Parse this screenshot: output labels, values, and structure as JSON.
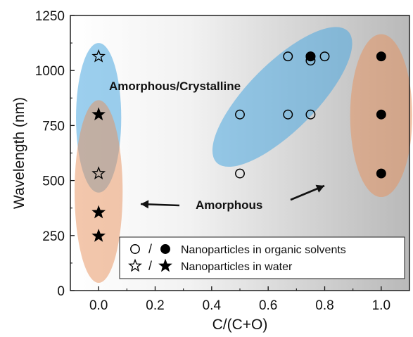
{
  "chart_data": {
    "type": "scatter",
    "xlabel": "C/(C+O)",
    "ylabel": "Wavelength (nm)",
    "xlim": [
      -0.1,
      1.1
    ],
    "ylim": [
      0,
      1250
    ],
    "xticks": [
      "0.0",
      "0.2",
      "0.4",
      "0.6",
      "0.8",
      "1.0"
    ],
    "xtick_values": [
      0.0,
      0.2,
      0.4,
      0.6,
      0.8,
      1.0
    ],
    "yticks": [
      "0",
      "250",
      "500",
      "750",
      "1000",
      "1250"
    ],
    "ytick_values": [
      0,
      250,
      500,
      750,
      1000,
      1250
    ],
    "background": "gradient white to gray (left to right)",
    "series": [
      {
        "name": "Nanoparticles in organic solvents",
        "marker_open": "circle",
        "marker_filled": "circle",
        "open_points": [
          {
            "x": 0.5,
            "y": 532
          },
          {
            "x": 0.5,
            "y": 800
          },
          {
            "x": 0.67,
            "y": 800
          },
          {
            "x": 0.67,
            "y": 1064
          },
          {
            "x": 0.75,
            "y": 800
          },
          {
            "x": 0.75,
            "y": 1045
          },
          {
            "x": 0.75,
            "y": 1064
          },
          {
            "x": 0.8,
            "y": 1064
          }
        ],
        "filled_points": [
          {
            "x": 0.75,
            "y": 1064
          },
          {
            "x": 1.0,
            "y": 532
          },
          {
            "x": 1.0,
            "y": 800
          },
          {
            "x": 1.0,
            "y": 1064
          }
        ]
      },
      {
        "name": "Nanoparticles in water",
        "marker_open": "star",
        "marker_filled": "star",
        "open_points": [
          {
            "x": 0.0,
            "y": 1064
          },
          {
            "x": 0.0,
            "y": 532
          }
        ],
        "filled_points": [
          {
            "x": 0.0,
            "y": 800
          },
          {
            "x": 0.0,
            "y": 355
          },
          {
            "x": 0.0,
            "y": 248
          }
        ]
      }
    ],
    "regions": [
      {
        "name": "blue-left",
        "color": "#4aa8e0",
        "cx": 0.0,
        "cy": 785,
        "rx": 0.08,
        "ry": 340
      },
      {
        "name": "orange-left",
        "color": "#e8905a",
        "cx": 0.0,
        "cy": 450,
        "rx": 0.085,
        "ry": 415
      },
      {
        "name": "blue-right",
        "color": "#4aa8e0",
        "cx": 0.65,
        "cy": 880,
        "rx": 0.25,
        "ry": 120,
        "rotation_deg": -45
      },
      {
        "name": "orange-right",
        "color": "#e8905a",
        "cx": 1.0,
        "cy": 795,
        "rx": 0.11,
        "ry": 370
      }
    ],
    "annotations": [
      {
        "text": "Amorphous/Crystalline"
      },
      {
        "text": "Amorphous"
      }
    ],
    "legend": {
      "placement": "bottom-right",
      "entries": [
        {
          "label": "Nanoparticles in organic solvents",
          "sep": "/"
        },
        {
          "label": "Nanoparticles in water",
          "sep": "/"
        }
      ]
    }
  }
}
